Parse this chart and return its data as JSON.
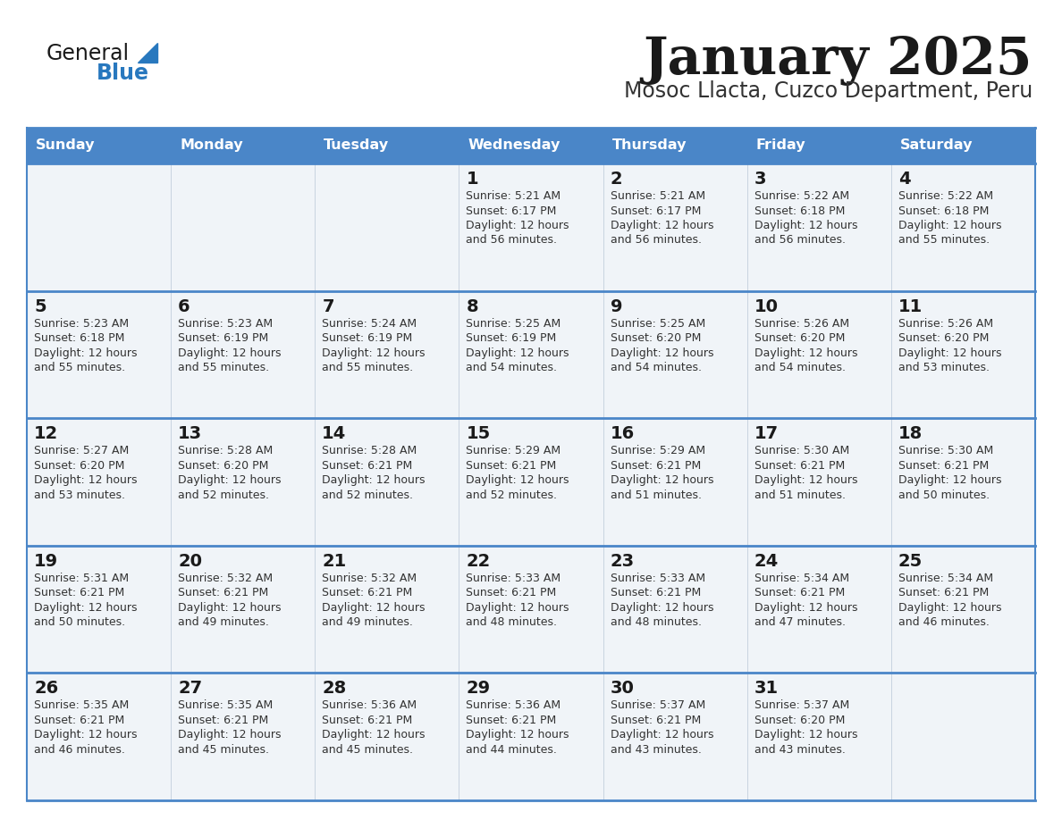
{
  "title": "January 2025",
  "subtitle": "Mosoc Llacta, Cuzco Department, Peru",
  "days_of_week": [
    "Sunday",
    "Monday",
    "Tuesday",
    "Wednesday",
    "Thursday",
    "Friday",
    "Saturday"
  ],
  "header_bg": "#4a86c8",
  "header_text": "#ffffff",
  "row_bg": "#f0f4f8",
  "border_color": "#4a86c8",
  "sep_line_color": "#4a86c8",
  "day_num_color": "#1a1a1a",
  "cell_text_color": "#333333",
  "calendar_data": [
    [
      null,
      null,
      null,
      {
        "day": 1,
        "sunrise": "5:21 AM",
        "sunset": "6:17 PM",
        "daylight_min": "56"
      },
      {
        "day": 2,
        "sunrise": "5:21 AM",
        "sunset": "6:17 PM",
        "daylight_min": "56"
      },
      {
        "day": 3,
        "sunrise": "5:22 AM",
        "sunset": "6:18 PM",
        "daylight_min": "56"
      },
      {
        "day": 4,
        "sunrise": "5:22 AM",
        "sunset": "6:18 PM",
        "daylight_min": "55"
      }
    ],
    [
      {
        "day": 5,
        "sunrise": "5:23 AM",
        "sunset": "6:18 PM",
        "daylight_min": "55"
      },
      {
        "day": 6,
        "sunrise": "5:23 AM",
        "sunset": "6:19 PM",
        "daylight_min": "55"
      },
      {
        "day": 7,
        "sunrise": "5:24 AM",
        "sunset": "6:19 PM",
        "daylight_min": "55"
      },
      {
        "day": 8,
        "sunrise": "5:25 AM",
        "sunset": "6:19 PM",
        "daylight_min": "54"
      },
      {
        "day": 9,
        "sunrise": "5:25 AM",
        "sunset": "6:20 PM",
        "daylight_min": "54"
      },
      {
        "day": 10,
        "sunrise": "5:26 AM",
        "sunset": "6:20 PM",
        "daylight_min": "54"
      },
      {
        "day": 11,
        "sunrise": "5:26 AM",
        "sunset": "6:20 PM",
        "daylight_min": "53"
      }
    ],
    [
      {
        "day": 12,
        "sunrise": "5:27 AM",
        "sunset": "6:20 PM",
        "daylight_min": "53"
      },
      {
        "day": 13,
        "sunrise": "5:28 AM",
        "sunset": "6:20 PM",
        "daylight_min": "52"
      },
      {
        "day": 14,
        "sunrise": "5:28 AM",
        "sunset": "6:21 PM",
        "daylight_min": "52"
      },
      {
        "day": 15,
        "sunrise": "5:29 AM",
        "sunset": "6:21 PM",
        "daylight_min": "52"
      },
      {
        "day": 16,
        "sunrise": "5:29 AM",
        "sunset": "6:21 PM",
        "daylight_min": "51"
      },
      {
        "day": 17,
        "sunrise": "5:30 AM",
        "sunset": "6:21 PM",
        "daylight_min": "51"
      },
      {
        "day": 18,
        "sunrise": "5:30 AM",
        "sunset": "6:21 PM",
        "daylight_min": "50"
      }
    ],
    [
      {
        "day": 19,
        "sunrise": "5:31 AM",
        "sunset": "6:21 PM",
        "daylight_min": "50"
      },
      {
        "day": 20,
        "sunrise": "5:32 AM",
        "sunset": "6:21 PM",
        "daylight_min": "49"
      },
      {
        "day": 21,
        "sunrise": "5:32 AM",
        "sunset": "6:21 PM",
        "daylight_min": "49"
      },
      {
        "day": 22,
        "sunrise": "5:33 AM",
        "sunset": "6:21 PM",
        "daylight_min": "48"
      },
      {
        "day": 23,
        "sunrise": "5:33 AM",
        "sunset": "6:21 PM",
        "daylight_min": "48"
      },
      {
        "day": 24,
        "sunrise": "5:34 AM",
        "sunset": "6:21 PM",
        "daylight_min": "47"
      },
      {
        "day": 25,
        "sunrise": "5:34 AM",
        "sunset": "6:21 PM",
        "daylight_min": "46"
      }
    ],
    [
      {
        "day": 26,
        "sunrise": "5:35 AM",
        "sunset": "6:21 PM",
        "daylight_min": "46"
      },
      {
        "day": 27,
        "sunrise": "5:35 AM",
        "sunset": "6:21 PM",
        "daylight_min": "45"
      },
      {
        "day": 28,
        "sunrise": "5:36 AM",
        "sunset": "6:21 PM",
        "daylight_min": "45"
      },
      {
        "day": 29,
        "sunrise": "5:36 AM",
        "sunset": "6:21 PM",
        "daylight_min": "44"
      },
      {
        "day": 30,
        "sunrise": "5:37 AM",
        "sunset": "6:21 PM",
        "daylight_min": "43"
      },
      {
        "day": 31,
        "sunrise": "5:37 AM",
        "sunset": "6:20 PM",
        "daylight_min": "43"
      },
      null
    ]
  ],
  "logo_general_color": "#1a1a1a",
  "logo_blue_color": "#2878be",
  "logo_triangle_color": "#2878be"
}
